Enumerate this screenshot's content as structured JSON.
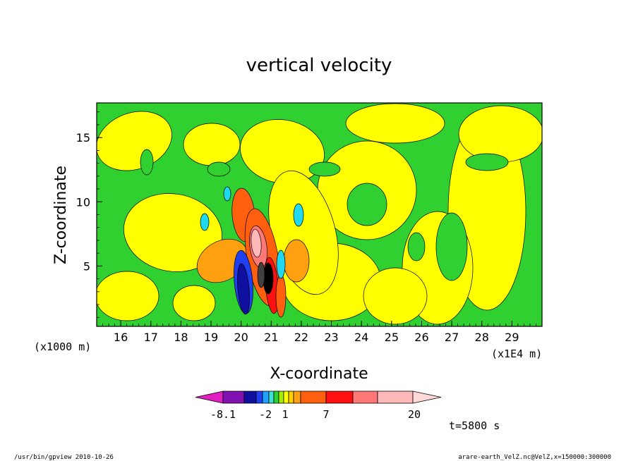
{
  "chart_data": {
    "type": "heatmap",
    "title": "vertical velocity",
    "xlabel": "X-coordinate",
    "ylabel": "Z-coordinate",
    "x_unit_left": "(x1000 m)",
    "x_unit_right": "(x1E4 m)",
    "xlim": [
      15.2,
      30.0
    ],
    "ylim": [
      0.3,
      17.7
    ],
    "x_ticks": [
      "16",
      "17",
      "18",
      "19",
      "20",
      "21",
      "22",
      "23",
      "24",
      "25",
      "26",
      "27",
      "28",
      "29"
    ],
    "y_ticks": [
      "5",
      "10",
      "15"
    ],
    "colorbar": {
      "tick_labels": [
        "-8.1",
        "-2",
        "1",
        "7",
        "20"
      ],
      "colors": [
        "#e020c0",
        "#8010b0",
        "#1010a0",
        "#2040f0",
        "#20a0ff",
        "#40e0d0",
        "#30d030",
        "#a0f000",
        "#ffff00",
        "#ffd000",
        "#ffa010",
        "#ff6010",
        "#ff1010",
        "#ff7878",
        "#ffb8b8",
        "#ffd8d8"
      ]
    },
    "background_color": "#30d030",
    "features": [
      {
        "x": 20.0,
        "z": 7.5,
        "value": 7,
        "color": "#ff6010"
      },
      {
        "x": 20.9,
        "z": 6.5,
        "value": 7,
        "color": "#ff6010"
      },
      {
        "x": 20.7,
        "z": 6.2,
        "value": 20,
        "color": "#ffb8b8"
      },
      {
        "x": 20.1,
        "z": 3.5,
        "value": -8.1,
        "color": "#1010a0"
      },
      {
        "x": 21.0,
        "z": 4.0,
        "value": -8.1,
        "color": "#000000"
      }
    ],
    "time_label": "t=5800 s"
  },
  "footer": {
    "left": "/usr/bin/gpview   2010-10-26",
    "right": "arare-earth_VelZ.nc@VelZ,x=150000:300000"
  }
}
